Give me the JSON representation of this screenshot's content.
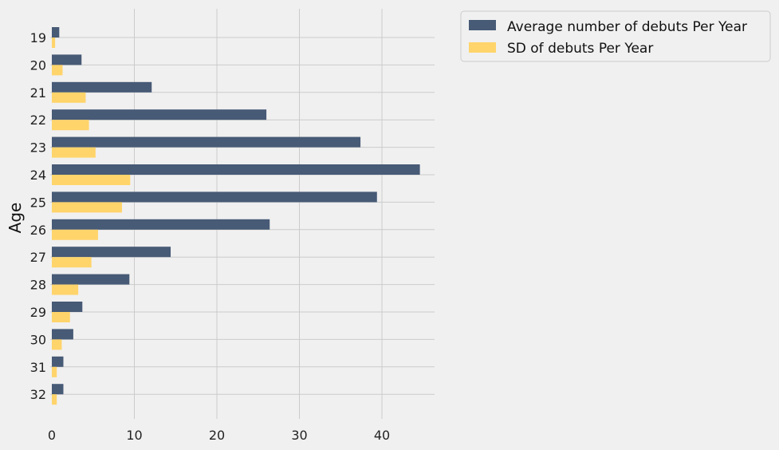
{
  "chart_data": {
    "type": "bar",
    "orientation": "horizontal",
    "ylabel": "Age",
    "xlabel": "",
    "categories": [
      "19",
      "20",
      "21",
      "22",
      "23",
      "24",
      "25",
      "26",
      "27",
      "28",
      "29",
      "30",
      "31",
      "32"
    ],
    "series": [
      {
        "name": "Average number of debuts Per Year",
        "color": "#475a76",
        "values": [
          0.9,
          3.6,
          12.1,
          26.0,
          37.4,
          44.6,
          39.4,
          26.4,
          14.4,
          9.4,
          3.7,
          2.6,
          1.4,
          1.4
        ]
      },
      {
        "name": "SD of debuts Per Year",
        "color": "#ffd46b",
        "values": [
          0.4,
          1.3,
          4.1,
          4.5,
          5.3,
          9.5,
          8.5,
          5.6,
          4.8,
          3.2,
          2.2,
          1.2,
          0.6,
          0.6
        ]
      }
    ],
    "xlim": [
      0,
      47
    ],
    "xticks": [
      0,
      10,
      20,
      30,
      40
    ],
    "grid": true,
    "legend": "top-right, outside plot"
  }
}
